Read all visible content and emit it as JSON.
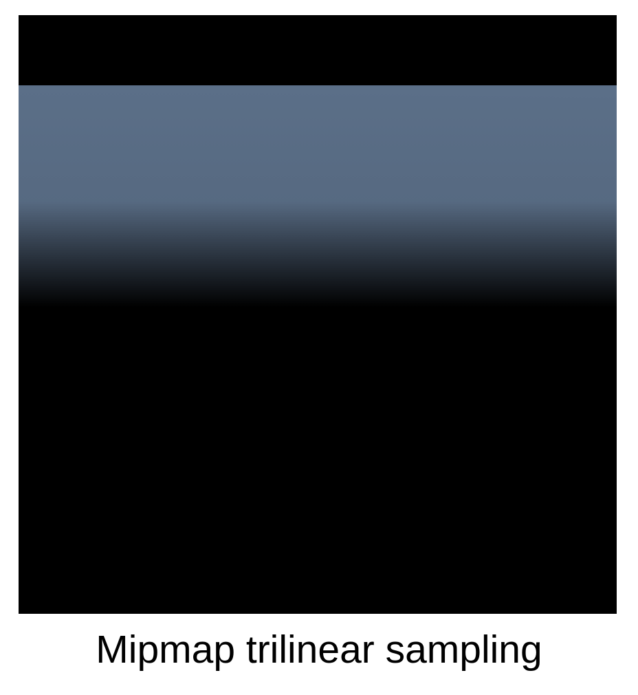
{
  "caption": "Mipmap trilinear sampling",
  "colors": {
    "sky": "#000000",
    "grid_line": "#8fb0dc",
    "horizon_haze": "#5b6f88",
    "floor_tile": "#000000"
  }
}
